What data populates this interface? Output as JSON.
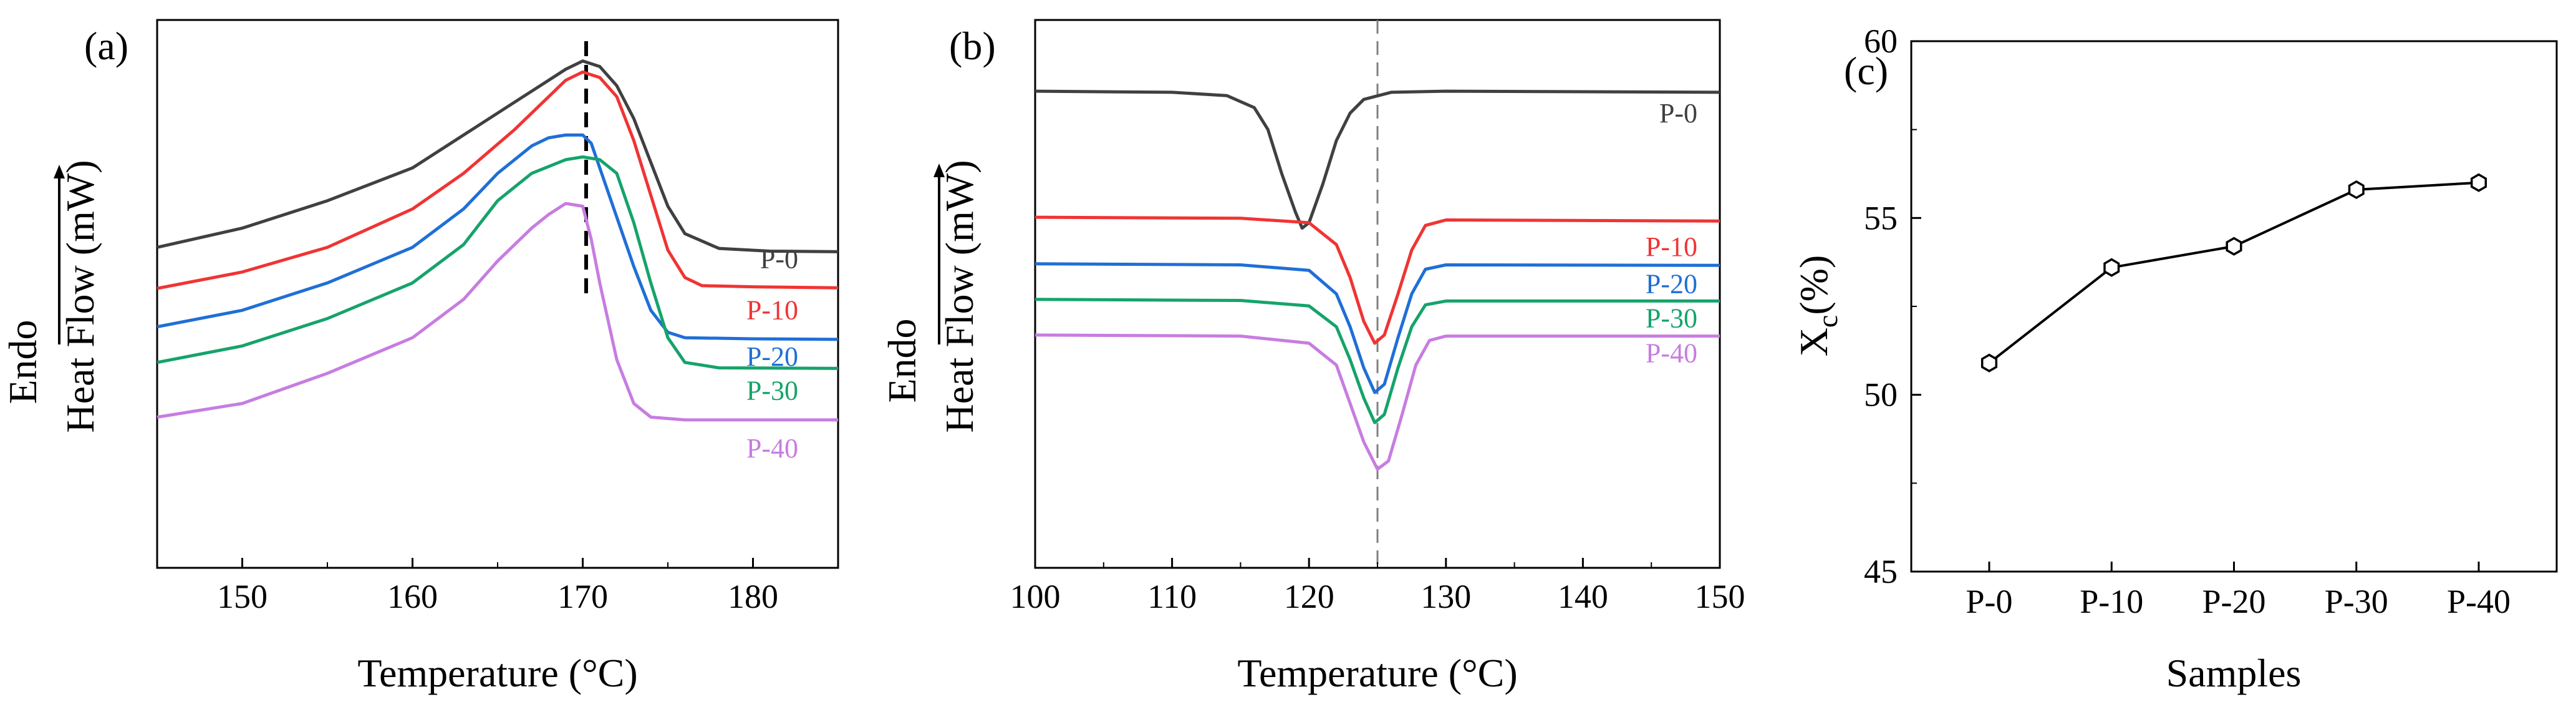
{
  "chart_data": [
    {
      "panel": "(a)",
      "type": "line",
      "title": "",
      "xlabel": "Temperature (°C)",
      "ylabel_top": "Endo",
      "ylabel": "Heat Flow (mW)",
      "xlim": [
        145,
        185
      ],
      "xticks": [
        "150",
        "160",
        "170",
        "180"
      ],
      "yticks": false,
      "marker_line": {
        "x": 170.2,
        "style": "dashed",
        "color": "#000000"
      },
      "series": [
        {
          "name": "P-0",
          "color": "#404040",
          "points": [
            [
              145,
              0.585
            ],
            [
              150,
              0.62
            ],
            [
              155,
              0.67
            ],
            [
              160,
              0.73
            ],
            [
              163,
              0.79
            ],
            [
              166,
              0.85
            ],
            [
              168,
              0.89
            ],
            [
              169,
              0.91
            ],
            [
              170,
              0.925
            ],
            [
              171,
              0.915
            ],
            [
              172,
              0.88
            ],
            [
              173,
              0.82
            ],
            [
              174,
              0.74
            ],
            [
              175,
              0.66
            ],
            [
              176,
              0.61
            ],
            [
              178,
              0.583
            ],
            [
              181,
              0.578
            ],
            [
              185,
              0.577
            ]
          ]
        },
        {
          "name": "P-10",
          "color": "#f03434",
          "points": [
            [
              145,
              0.51
            ],
            [
              150,
              0.54
            ],
            [
              155,
              0.585
            ],
            [
              160,
              0.655
            ],
            [
              163,
              0.72
            ],
            [
              166,
              0.8
            ],
            [
              168,
              0.86
            ],
            [
              169,
              0.89
            ],
            [
              170,
              0.905
            ],
            [
              171,
              0.895
            ],
            [
              172,
              0.86
            ],
            [
              173,
              0.78
            ],
            [
              174,
              0.68
            ],
            [
              175,
              0.58
            ],
            [
              176,
              0.53
            ],
            [
              177,
              0.515
            ],
            [
              180,
              0.513
            ],
            [
              185,
              0.511
            ]
          ]
        },
        {
          "name": "P-20",
          "color": "#1f6fd6",
          "points": [
            [
              145,
              0.44
            ],
            [
              150,
              0.47
            ],
            [
              155,
              0.52
            ],
            [
              160,
              0.585
            ],
            [
              163,
              0.655
            ],
            [
              165,
              0.72
            ],
            [
              167,
              0.77
            ],
            [
              168,
              0.785
            ],
            [
              169,
              0.79
            ],
            [
              170,
              0.79
            ],
            [
              170.5,
              0.775
            ],
            [
              171,
              0.73
            ],
            [
              172,
              0.64
            ],
            [
              173,
              0.55
            ],
            [
              174,
              0.47
            ],
            [
              175,
              0.43
            ],
            [
              176,
              0.42
            ],
            [
              180,
              0.418
            ],
            [
              185,
              0.417
            ]
          ]
        },
        {
          "name": "P-30",
          "color": "#16a36b",
          "points": [
            [
              145,
              0.375
            ],
            [
              150,
              0.405
            ],
            [
              155,
              0.455
            ],
            [
              160,
              0.52
            ],
            [
              163,
              0.59
            ],
            [
              165,
              0.67
            ],
            [
              167,
              0.72
            ],
            [
              169,
              0.745
            ],
            [
              170,
              0.75
            ],
            [
              171,
              0.745
            ],
            [
              172,
              0.72
            ],
            [
              173,
              0.63
            ],
            [
              174,
              0.52
            ],
            [
              175,
              0.42
            ],
            [
              176,
              0.375
            ],
            [
              178,
              0.365
            ],
            [
              185,
              0.364
            ]
          ]
        },
        {
          "name": "P-40",
          "color": "#c77de0",
          "points": [
            [
              145,
              0.275
            ],
            [
              150,
              0.3
            ],
            [
              155,
              0.355
            ],
            [
              160,
              0.42
            ],
            [
              163,
              0.49
            ],
            [
              165,
              0.56
            ],
            [
              167,
              0.62
            ],
            [
              168,
              0.645
            ],
            [
              169,
              0.665
            ],
            [
              170,
              0.66
            ],
            [
              170.5,
              0.6
            ],
            [
              171,
              0.52
            ],
            [
              172,
              0.38
            ],
            [
              173,
              0.3
            ],
            [
              174,
              0.275
            ],
            [
              176,
              0.27
            ],
            [
              180,
              0.27
            ],
            [
              185,
              0.27
            ]
          ]
        }
      ]
    },
    {
      "panel": "(b)",
      "type": "line",
      "title": "",
      "xlabel": "Temperature (°C)",
      "ylabel_top": "Endo",
      "ylabel": "Heat Flow (mW)",
      "xlim": [
        100,
        150
      ],
      "xticks": [
        "100",
        "110",
        "120",
        "130",
        "140",
        "150"
      ],
      "yticks": false,
      "marker_line": {
        "x": 125,
        "style": "dashed",
        "color": "#808080"
      },
      "series": [
        {
          "name": "P-0",
          "color": "#404040",
          "points": [
            [
              100,
              0.87
            ],
            [
              110,
              0.868
            ],
            [
              114,
              0.862
            ],
            [
              116,
              0.84
            ],
            [
              117,
              0.8
            ],
            [
              118,
              0.72
            ],
            [
              119,
              0.65
            ],
            [
              119.5,
              0.62
            ],
            [
              120,
              0.63
            ],
            [
              121,
              0.7
            ],
            [
              122,
              0.78
            ],
            [
              123,
              0.83
            ],
            [
              124,
              0.855
            ],
            [
              126,
              0.868
            ],
            [
              130,
              0.87
            ],
            [
              150,
              0.868
            ]
          ]
        },
        {
          "name": "P-10",
          "color": "#f03434",
          "points": [
            [
              100,
              0.64
            ],
            [
              115,
              0.638
            ],
            [
              120,
              0.63
            ],
            [
              122,
              0.59
            ],
            [
              123,
              0.53
            ],
            [
              124,
              0.45
            ],
            [
              124.8,
              0.41
            ],
            [
              125.5,
              0.425
            ],
            [
              126.5,
              0.5
            ],
            [
              127.5,
              0.58
            ],
            [
              128.5,
              0.625
            ],
            [
              130,
              0.635
            ],
            [
              150,
              0.633
            ]
          ]
        },
        {
          "name": "P-20",
          "color": "#1f6fd6",
          "points": [
            [
              100,
              0.555
            ],
            [
              115,
              0.553
            ],
            [
              120,
              0.543
            ],
            [
              122,
              0.5
            ],
            [
              123,
              0.44
            ],
            [
              124,
              0.365
            ],
            [
              124.8,
              0.32
            ],
            [
              125.5,
              0.335
            ],
            [
              126.5,
              0.42
            ],
            [
              127.5,
              0.5
            ],
            [
              128.5,
              0.545
            ],
            [
              130,
              0.553
            ],
            [
              150,
              0.552
            ]
          ]
        },
        {
          "name": "P-30",
          "color": "#16a36b",
          "points": [
            [
              100,
              0.49
            ],
            [
              115,
              0.488
            ],
            [
              120,
              0.478
            ],
            [
              122,
              0.44
            ],
            [
              123,
              0.38
            ],
            [
              124,
              0.31
            ],
            [
              124.8,
              0.265
            ],
            [
              125.5,
              0.28
            ],
            [
              126.5,
              0.365
            ],
            [
              127.5,
              0.44
            ],
            [
              128.5,
              0.48
            ],
            [
              130,
              0.487
            ],
            [
              150,
              0.487
            ]
          ]
        },
        {
          "name": "P-40",
          "color": "#c77de0",
          "points": [
            [
              100,
              0.425
            ],
            [
              115,
              0.423
            ],
            [
              120,
              0.41
            ],
            [
              122,
              0.37
            ],
            [
              123,
              0.3
            ],
            [
              124,
              0.23
            ],
            [
              125,
              0.18
            ],
            [
              125.8,
              0.195
            ],
            [
              126.8,
              0.28
            ],
            [
              127.8,
              0.37
            ],
            [
              128.8,
              0.415
            ],
            [
              130,
              0.423
            ],
            [
              150,
              0.423
            ]
          ]
        }
      ]
    },
    {
      "panel": "(c)",
      "type": "line",
      "title": "",
      "xlabel": "Samples",
      "ylabel": "X",
      "ylabel_sub": "c",
      "ylabel_suffix": "(%)",
      "ylim": [
        45,
        60
      ],
      "yticks": [
        "45",
        "50",
        "55",
        "60"
      ],
      "categories": [
        "P-0",
        "P-10",
        "P-20",
        "P-30",
        "P-40"
      ],
      "values": [
        50.9,
        53.6,
        54.2,
        55.8,
        56.0
      ],
      "marker": "hexagon-open",
      "color": "#000000"
    }
  ]
}
